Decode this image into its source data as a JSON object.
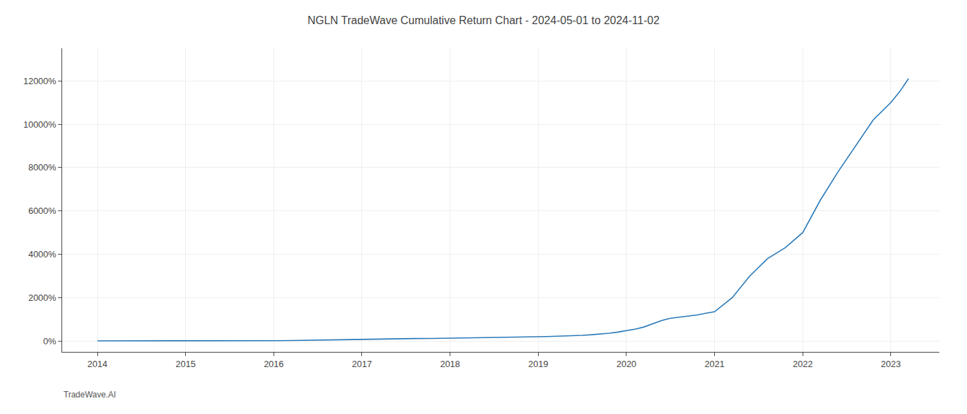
{
  "chart_data": {
    "type": "line",
    "title": "NGLN TradeWave Cumulative Return Chart - 2024-05-01 to 2024-11-02",
    "annotations": [
      "TradeWave.AI"
    ],
    "color": "#2878b8",
    "grid": true,
    "x": [
      2014.0,
      2014.2,
      2014.4,
      2014.6,
      2014.8,
      2015.0,
      2015.2,
      2015.4,
      2015.6,
      2015.8,
      2016.0,
      2016.2,
      2016.4,
      2016.6,
      2016.8,
      2017.0,
      2017.2,
      2017.4,
      2017.6,
      2017.8,
      2018.0,
      2018.2,
      2018.4,
      2018.6,
      2018.8,
      2019.0,
      2019.1,
      2019.2,
      2019.3,
      2019.4,
      2019.5,
      2019.6,
      2019.7,
      2019.8,
      2019.9,
      2020.0,
      2020.1,
      2020.2,
      2020.3,
      2020.4,
      2020.5,
      2020.6,
      2020.7,
      2020.8,
      2020.9,
      2021.0,
      2021.2,
      2021.4,
      2021.6,
      2021.8,
      2022.0,
      2022.2,
      2022.4,
      2022.6,
      2022.8,
      2023.0,
      2023.1,
      2023.2
    ],
    "values": [
      10,
      9,
      8,
      8,
      7,
      7,
      6,
      8,
      10,
      12,
      18,
      25,
      40,
      55,
      70,
      85,
      95,
      105,
      115,
      120,
      130,
      145,
      160,
      175,
      185,
      200,
      210,
      220,
      240,
      250,
      265,
      290,
      320,
      360,
      410,
      480,
      550,
      650,
      800,
      950,
      1050,
      1100,
      1150,
      1200,
      1280,
      1350,
      2000,
      3000,
      3800,
      4300,
      5000,
      6500,
      7800,
      9000,
      10200,
      11000,
      11500,
      12100
    ],
    "xlim": [
      2013.6,
      2023.55
    ],
    "xticks": [
      2014,
      2015,
      2016,
      2017,
      2018,
      2019,
      2020,
      2021,
      2022,
      2023
    ],
    "ylim": [
      -500,
      13500
    ],
    "yticks": [
      {
        "value": 0,
        "label": "0%"
      },
      {
        "value": 2000,
        "label": "2000%"
      },
      {
        "value": 4000,
        "label": "4000%"
      },
      {
        "value": 6000,
        "label": "6000%"
      },
      {
        "value": 8000,
        "label": "8000%"
      },
      {
        "value": 10000,
        "label": "10000%"
      },
      {
        "value": 12000,
        "label": "12000%"
      }
    ]
  }
}
